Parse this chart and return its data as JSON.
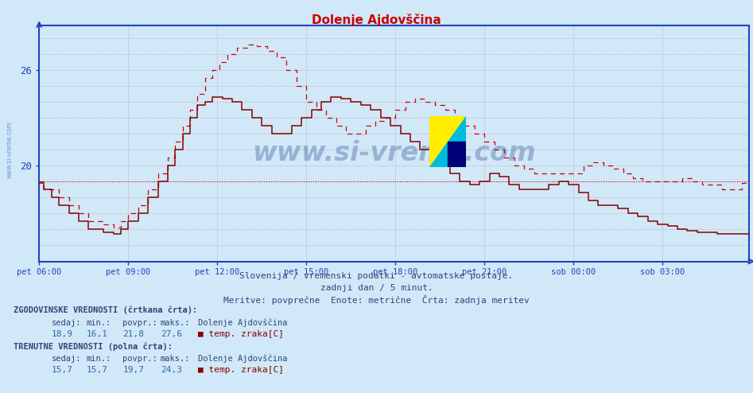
{
  "title": "Dolenje Ajdovščina",
  "title_color": "#cc0000",
  "bg_color": "#d0e8f8",
  "plot_bg_color": "#d0e8f8",
  "grid_color": "#cc9999",
  "axis_color": "#2244bb",
  "tick_color": "#2244bb",
  "line_color": "#cc0000",
  "dark_line_color": "#880000",
  "ylim_min": 14.0,
  "ylim_max": 28.8,
  "yticks": [
    20,
    26
  ],
  "x_labels": [
    "pet 06:00",
    "pet 09:00",
    "pet 12:00",
    "pet 15:00",
    "pet 18:00",
    "pet 21:00",
    "sob 00:00",
    "sob 03:00"
  ],
  "x_tick_pos": [
    0,
    36,
    72,
    108,
    144,
    180,
    216,
    252
  ],
  "n_points": 288,
  "avg_hist": 19.0,
  "subtitle1": "Slovenija / vremenski podatki - avtomatske postaje.",
  "subtitle2": "zadnji dan / 5 minut.",
  "subtitle3": "Meritve: povprečne  Enote: metrične  Črta: zadnja meritev",
  "watermark": "www.si-vreme.com",
  "footer_zg": "ZGODOVINSKE VREDNOSTI (črtkana črta):",
  "footer_tr": "TRENUTNE VREDNOSTI (polna črta):",
  "col_sedaj": "sedaj:",
  "col_min": "min.:",
  "col_povpr": "povpr.:",
  "col_maks": "maks.:",
  "col_station": "Dolenje Ajdovščina",
  "zg_sedaj": "18,9",
  "zg_min": "16,1",
  "zg_povpr": "21,8",
  "zg_maks": "27,6",
  "tr_sedaj": "15,7",
  "tr_min": "15,7",
  "tr_povpr": "19,7",
  "tr_maks": "24,3",
  "temp_label": "temp. zraka[C]"
}
